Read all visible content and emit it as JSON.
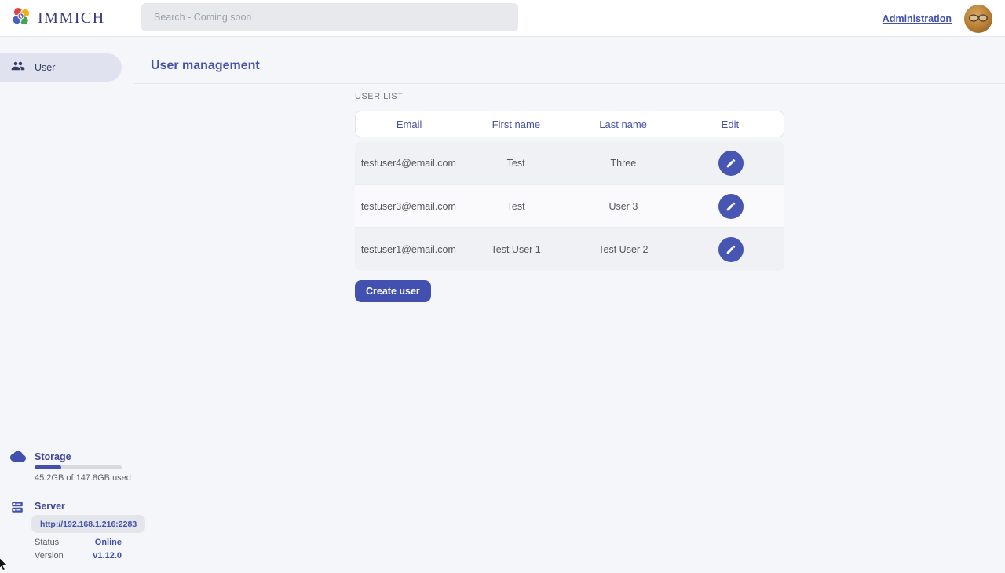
{
  "topbar": {
    "logo_text": "IMMICH",
    "search_placeholder": "Search - Coming soon",
    "admin_link": "Administration"
  },
  "sidebar": {
    "nav_user_label": "User",
    "storage": {
      "title": "Storage",
      "usage_text": "45.2GB of 147.8GB used",
      "percent": 30.6
    },
    "server": {
      "title": "Server",
      "url": "http://192.168.1.216:2283",
      "status_label": "Status",
      "status_value": "Online",
      "version_label": "Version",
      "version_value": "v1.12.0"
    }
  },
  "main": {
    "title": "User management",
    "section_label": "USER LIST",
    "table": {
      "headers": [
        "Email",
        "First name",
        "Last name",
        "Edit"
      ],
      "rows": [
        {
          "email": "testuser4@email.com",
          "first": "Test",
          "last": "Three"
        },
        {
          "email": "testuser3@email.com",
          "first": "Test",
          "last": "User 3"
        },
        {
          "email": "testuser1@email.com",
          "first": "Test User 1",
          "last": "Test User 2"
        }
      ]
    },
    "create_button": "Create user"
  },
  "colors": {
    "primary": "#4250af",
    "status_online": "#4250af",
    "row_alt_bg": "#f0f1f4",
    "pill_bg": "#e0e3ef",
    "page_bg": "#f5f6fa"
  }
}
